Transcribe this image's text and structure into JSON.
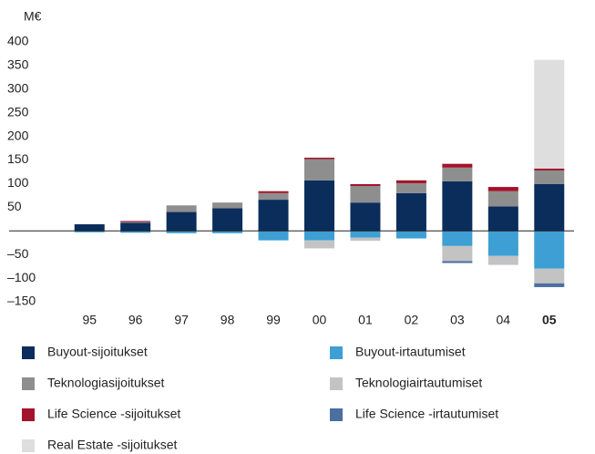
{
  "chart_data": {
    "type": "bar",
    "stacked": true,
    "unit_label": "M€",
    "categories": [
      "95",
      "96",
      "97",
      "98",
      "99",
      "00",
      "01",
      "02",
      "03",
      "04",
      "05"
    ],
    "bold_category": 10,
    "series": [
      {
        "name": "Buyout-sijoitukset",
        "color": "#0b2d5b",
        "values": [
          14,
          17,
          40,
          48,
          66,
          107,
          60,
          80,
          105,
          52,
          99
        ]
      },
      {
        "name": "Buyout-irtautumiset",
        "color": "#3d9fd3",
        "values": [
          -3,
          -4,
          -5,
          -5,
          -20,
          -20,
          -14,
          -16,
          -32,
          -53,
          -80
        ]
      },
      {
        "name": "Teknologiasijoitukset",
        "color": "#8e8e8e",
        "values": [
          null,
          2,
          14,
          12,
          14,
          45,
          35,
          21,
          29,
          32,
          29
        ]
      },
      {
        "name": "Teknologiairtautumiset",
        "color": "#c3c3c3",
        "values": [
          null,
          null,
          null,
          null,
          null,
          -17,
          -7,
          null,
          -32,
          -19,
          -31
        ]
      },
      {
        "name": "Life Science -sijoitukset",
        "color": "#a3132b",
        "values": [
          null,
          2,
          null,
          null,
          4,
          3,
          4,
          6,
          8,
          9,
          4
        ]
      },
      {
        "name": "Life Science -irtautumiset",
        "color": "#4b6f9f",
        "values": [
          null,
          null,
          null,
          null,
          null,
          null,
          null,
          null,
          -4,
          null,
          -8
        ]
      },
      {
        "name": "Real Estate -sijoitukset",
        "color": "#dedede",
        "values": [
          null,
          null,
          null,
          null,
          null,
          null,
          null,
          null,
          null,
          null,
          230
        ]
      }
    ],
    "ylim": [
      -150,
      400
    ],
    "yticks": [
      {
        "value": -150,
        "label": "–150"
      },
      {
        "value": -100,
        "label": "–100"
      },
      {
        "value": -50,
        "label": "–50"
      },
      50,
      100,
      150,
      200,
      250,
      300,
      350,
      400
    ]
  }
}
